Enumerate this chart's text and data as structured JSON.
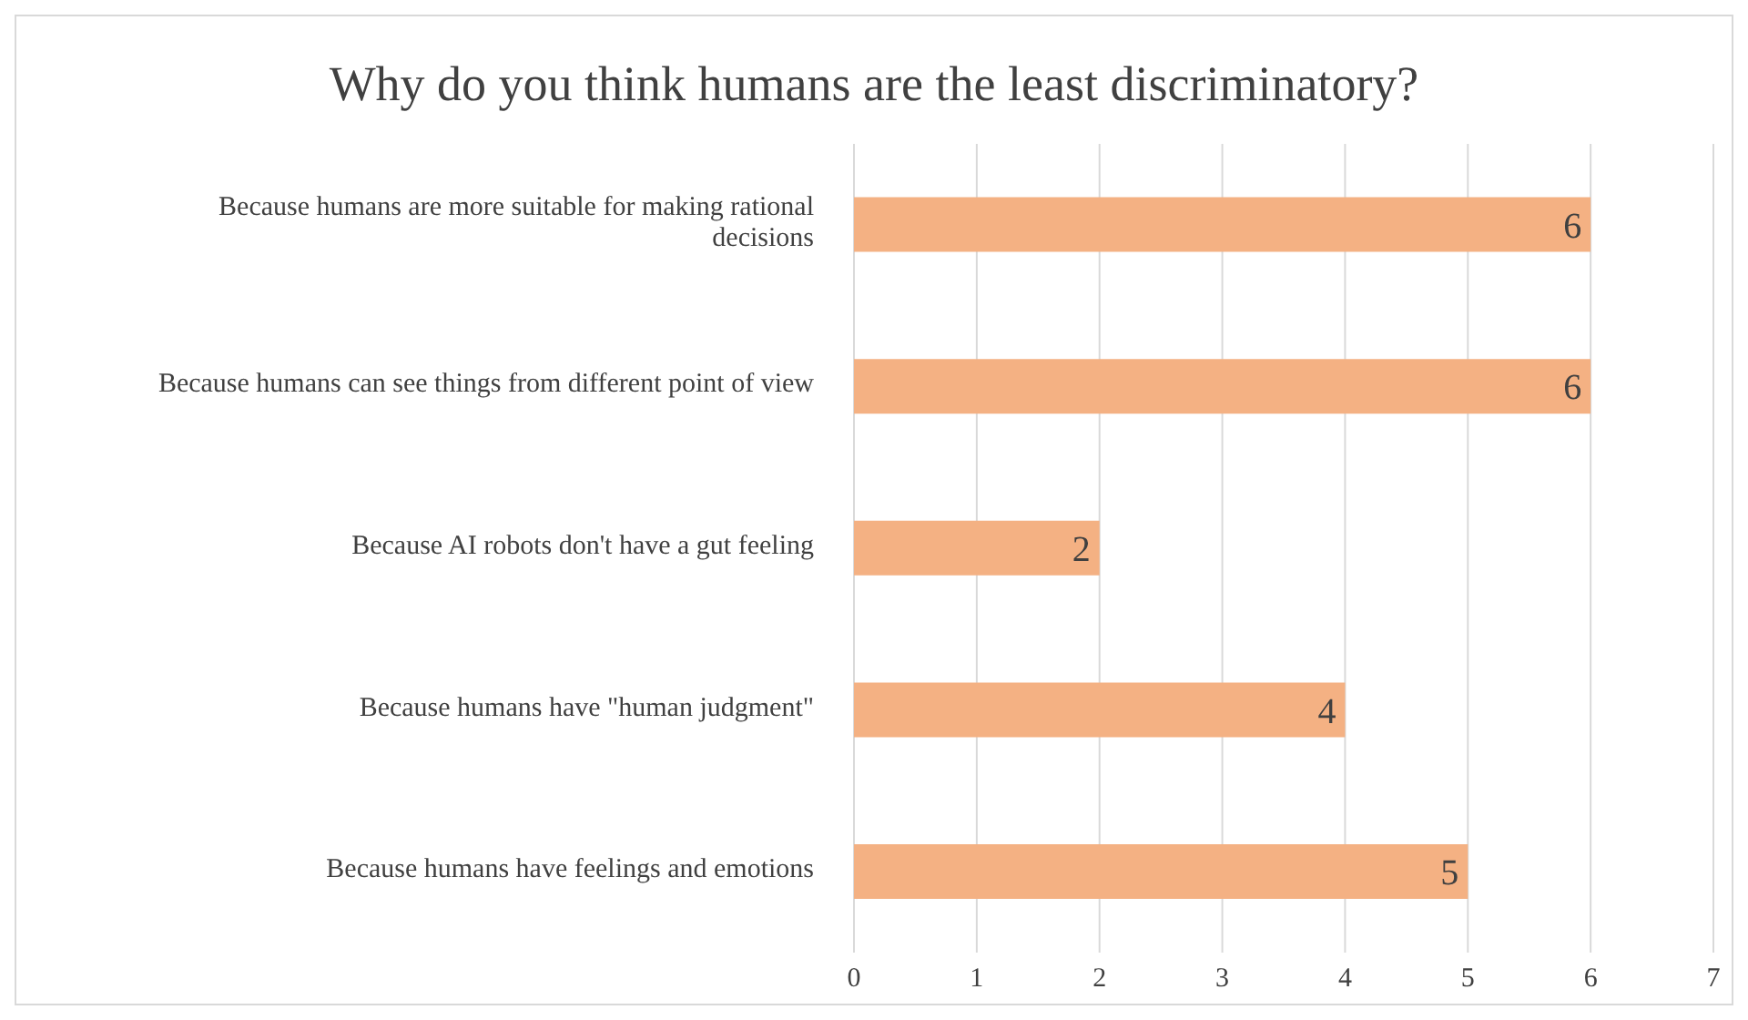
{
  "chart_data": {
    "type": "bar",
    "orientation": "horizontal",
    "title": "Why do you think humans are the least discriminatory?",
    "categories": [
      "Because humans are more suitable for making rational decisions",
      "Because humans can see things from different point of view",
      "Because AI robots don't have a gut feeling",
      "Because humans have \"human judgment\"",
      "Because humans have feelings and emotions"
    ],
    "values": [
      6,
      6,
      2,
      4,
      5
    ],
    "color": "#f4b183",
    "xlim": [
      0,
      7
    ],
    "xticks": [
      0,
      1,
      2,
      3,
      4,
      5,
      6,
      7
    ],
    "grid": "x",
    "data_labels": true
  }
}
